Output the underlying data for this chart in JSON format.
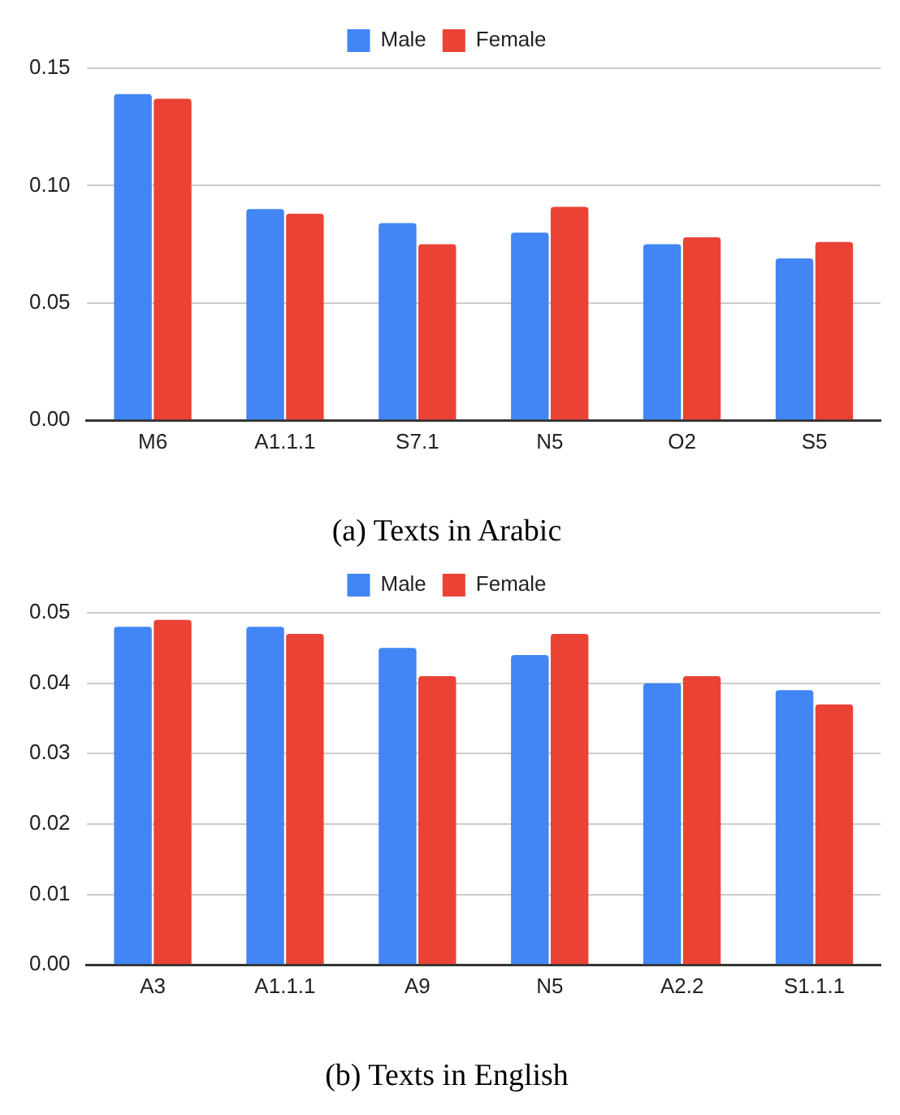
{
  "chart_data": [
    {
      "type": "bar",
      "title": "(a) Texts in Arabic",
      "categories": [
        "M6",
        "A1.1.1",
        "S7.1",
        "N5",
        "O2",
        "S5"
      ],
      "series": [
        {
          "name": "Male",
          "color": "#4285f4",
          "values": [
            0.139,
            0.09,
            0.084,
            0.08,
            0.075,
            0.069
          ]
        },
        {
          "name": "Female",
          "color": "#ea4335",
          "values": [
            0.137,
            0.088,
            0.075,
            0.091,
            0.078,
            0.076
          ]
        }
      ],
      "ylim": [
        0,
        0.15
      ],
      "yticks": [
        {
          "value": 0,
          "label": "0.00"
        },
        {
          "value": 0.05,
          "label": "0.05"
        },
        {
          "value": 0.1,
          "label": "0.10"
        },
        {
          "value": 0.15,
          "label": "0.15"
        }
      ],
      "grid": "y",
      "legend": "top"
    },
    {
      "type": "bar",
      "title": "(b) Texts in English",
      "categories": [
        "A3",
        "A1.1.1",
        "A9",
        "N5",
        "A2.2",
        "S1.1.1"
      ],
      "series": [
        {
          "name": "Male",
          "color": "#4285f4",
          "values": [
            0.048,
            0.048,
            0.045,
            0.044,
            0.04,
            0.039
          ]
        },
        {
          "name": "Female",
          "color": "#ea4335",
          "values": [
            0.049,
            0.047,
            0.041,
            0.047,
            0.041,
            0.037
          ]
        }
      ],
      "ylim": [
        0,
        0.05
      ],
      "yticks": [
        {
          "value": 0,
          "label": "0.00"
        },
        {
          "value": 0.01,
          "label": "0.01"
        },
        {
          "value": 0.02,
          "label": "0.02"
        },
        {
          "value": 0.03,
          "label": "0.03"
        },
        {
          "value": 0.04,
          "label": "0.04"
        },
        {
          "value": 0.05,
          "label": "0.05"
        }
      ],
      "grid": "y",
      "legend": "top"
    }
  ]
}
